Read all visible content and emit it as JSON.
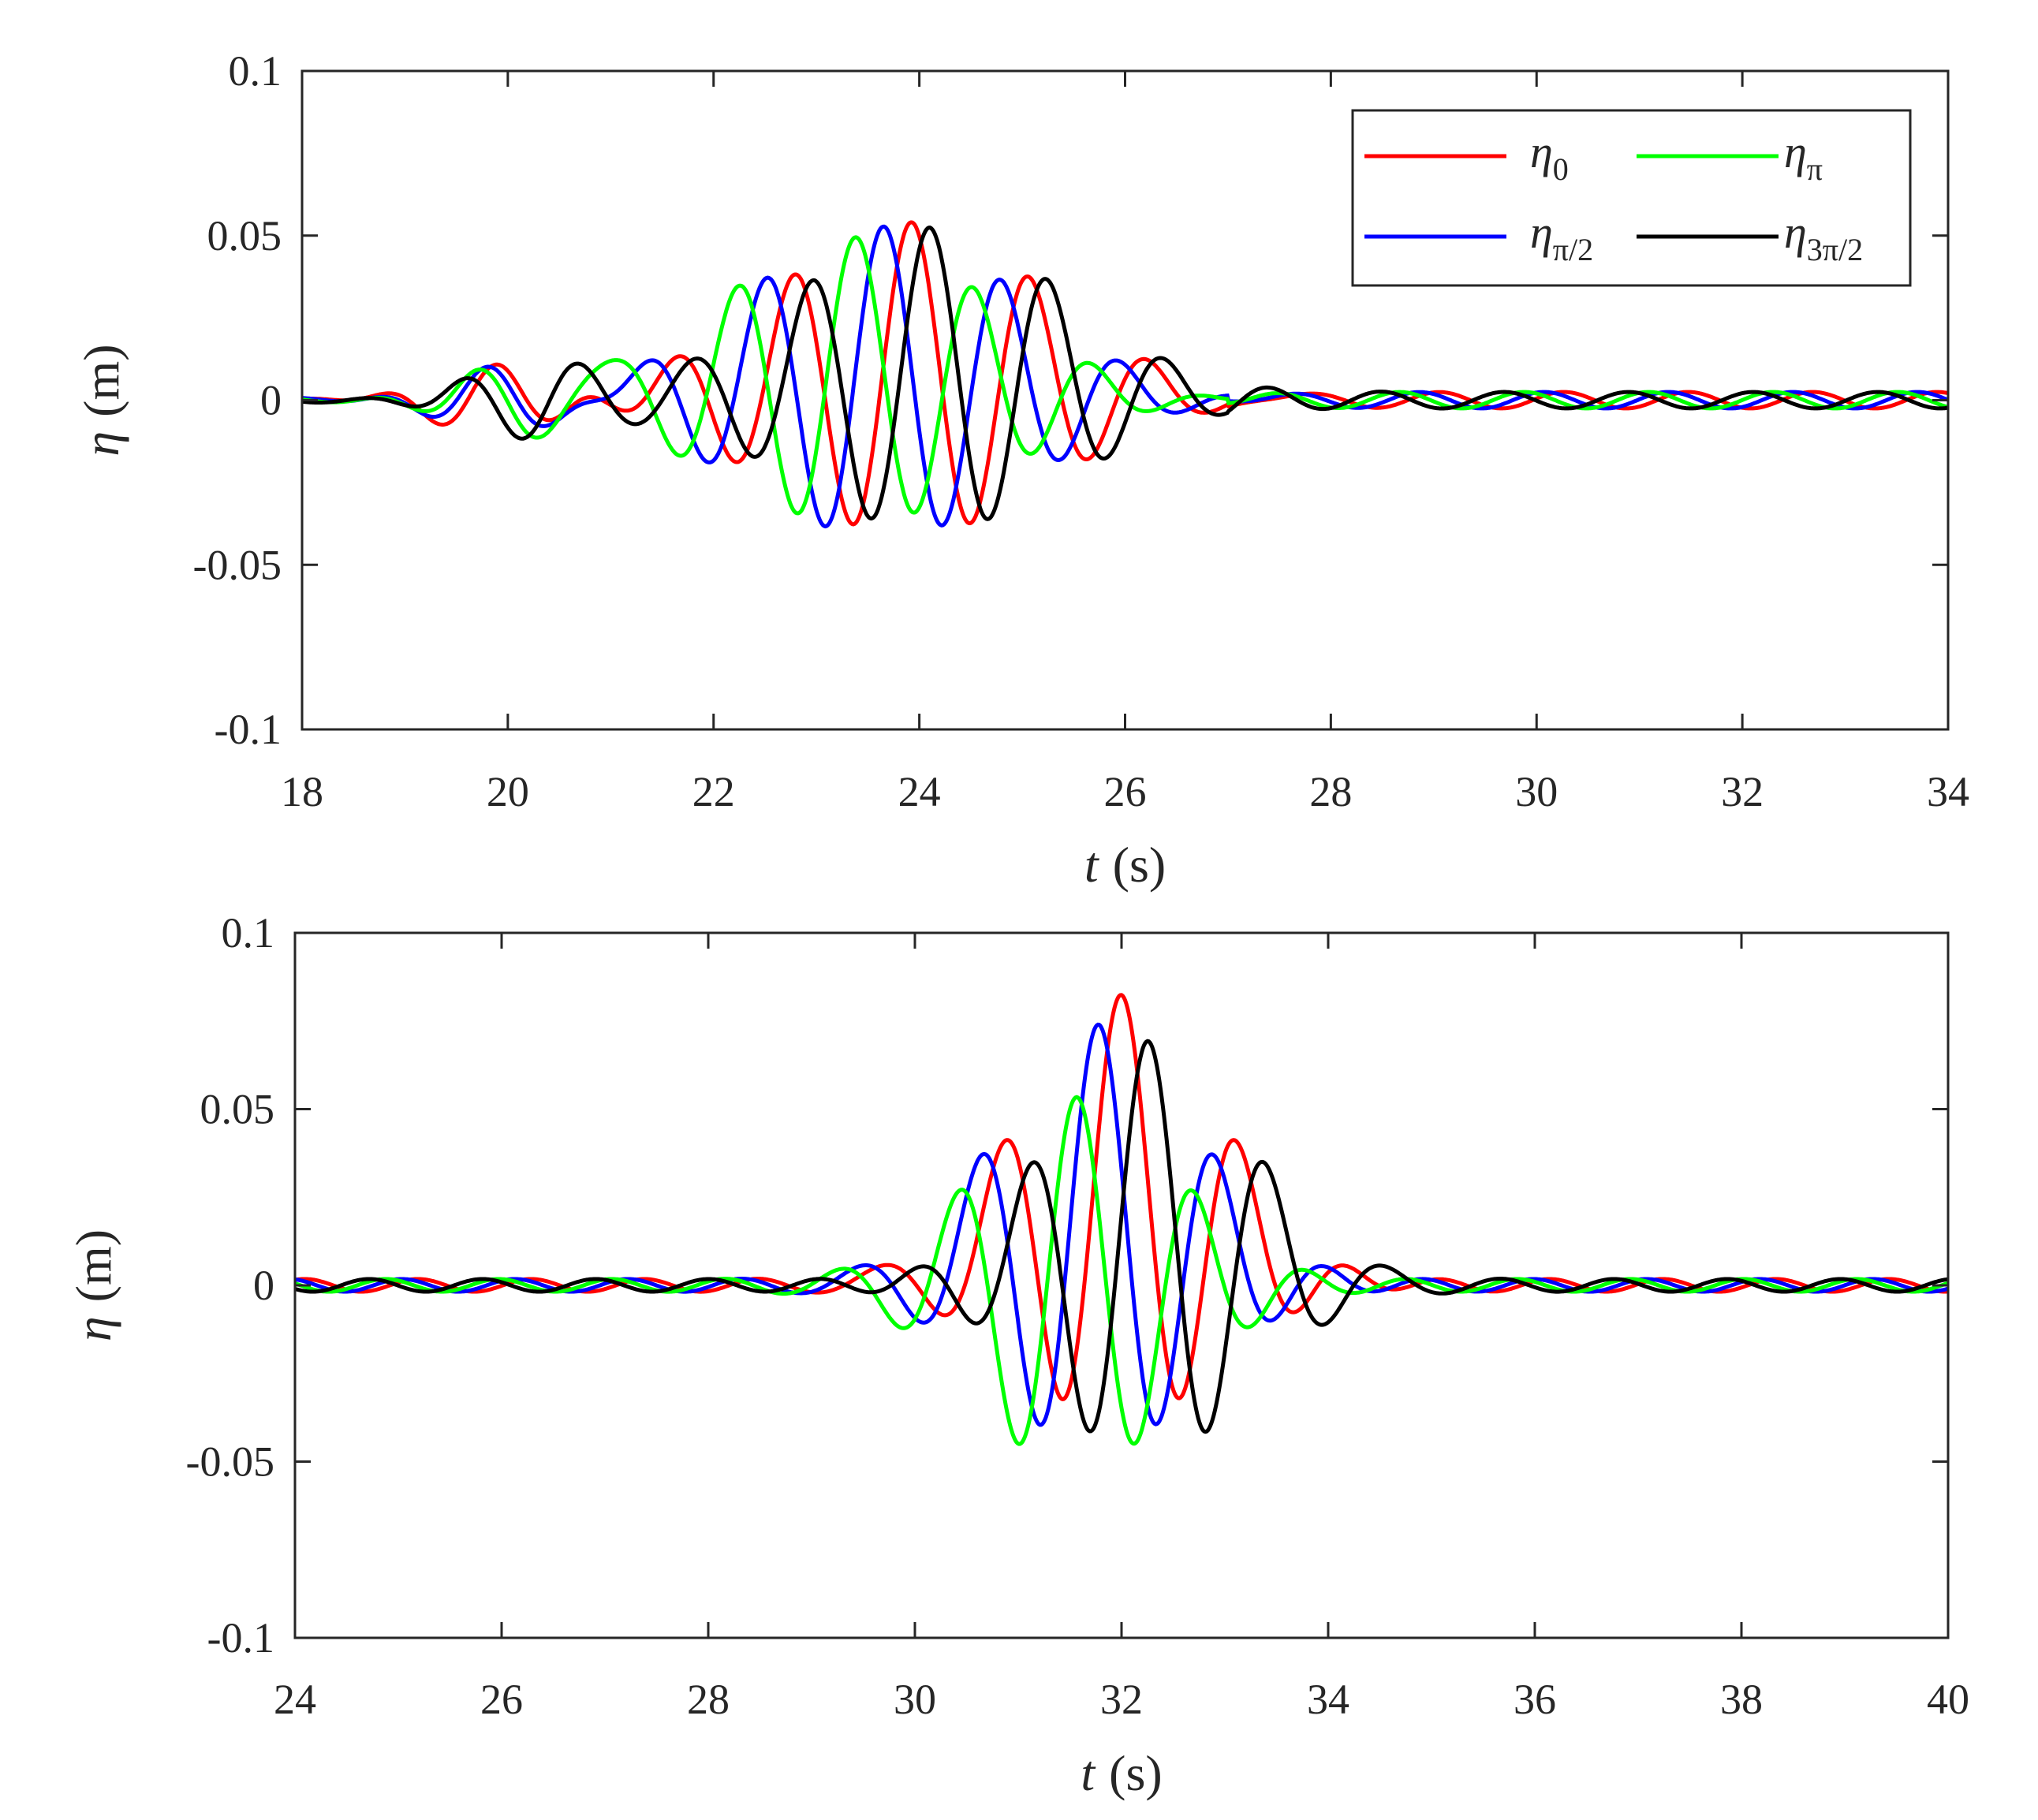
{
  "colors": {
    "eta_0": "#ff0000",
    "eta_pi": "#00ff00",
    "eta_pi_2": "#0000ff",
    "eta_3pi_2": "#000000",
    "axis": "#262626"
  },
  "chart_data": [
    {
      "type": "line",
      "xlabel": {
        "sym": "t",
        "unit": "(s)"
      },
      "ylabel": {
        "sym": "η",
        "unit": "(m)"
      },
      "xlim": [
        18,
        34
      ],
      "ylim": [
        -0.1,
        0.1
      ],
      "xticks": [
        "18",
        "20",
        "22",
        "24",
        "26",
        "28",
        "30",
        "32",
        "34"
      ],
      "yticks": [
        "-0.1",
        "-0.05",
        "0",
        "0.05",
        "0.1"
      ],
      "grid": false,
      "legend": {
        "location": "top-right",
        "entries": [
          {
            "key": "eta_0",
            "sym": "η",
            "sub": "0"
          },
          {
            "key": "eta_pi",
            "sym": "η",
            "sub": "π"
          },
          {
            "key": "eta_pi_2",
            "sym": "η",
            "sub": "π/2"
          },
          {
            "key": "eta_3pi_2",
            "sym": "η",
            "sub": "3π/2"
          }
        ]
      },
      "series": [
        {
          "key": "eta_0",
          "color": "#ff0000",
          "peak_time": 23.92,
          "peak_value": 0.054,
          "trough_value": -0.041
        },
        {
          "key": "eta_pi_2",
          "color": "#0000ff",
          "peak_time": 23.65,
          "peak_value": 0.053,
          "trough_value": -0.042
        },
        {
          "key": "eta_pi",
          "color": "#00ff00",
          "peak_time": 23.38,
          "peak_value": 0.05,
          "trough_value": -0.038
        },
        {
          "key": "eta_3pi_2",
          "color": "#000000",
          "peak_time": 24.1,
          "peak_value": 0.053,
          "trough_value": -0.04
        }
      ]
    },
    {
      "type": "line",
      "xlabel": {
        "sym": "t",
        "unit": "(s)"
      },
      "ylabel": {
        "sym": "η",
        "unit": "(m)"
      },
      "xlim": [
        24,
        40
      ],
      "ylim": [
        -0.1,
        0.1
      ],
      "xticks": [
        "24",
        "26",
        "28",
        "30",
        "32",
        "34",
        "36",
        "38",
        "40"
      ],
      "yticks": [
        "-0.1",
        "-0.05",
        "0",
        "0.05",
        "0.1"
      ],
      "grid": false,
      "series": [
        {
          "key": "eta_0",
          "color": "#ff0000",
          "peak_time": 32.0,
          "peak_value": 0.082,
          "trough_value": -0.038
        },
        {
          "key": "eta_pi_2",
          "color": "#0000ff",
          "peak_time": 31.78,
          "peak_value": 0.073,
          "trough_value": -0.046
        },
        {
          "key": "eta_pi",
          "color": "#00ff00",
          "peak_time": 31.57,
          "peak_value": 0.052,
          "trough_value": -0.052
        },
        {
          "key": "eta_3pi_2",
          "color": "#000000",
          "peak_time": 32.25,
          "peak_value": 0.068,
          "trough_value": -0.048
        }
      ]
    }
  ]
}
